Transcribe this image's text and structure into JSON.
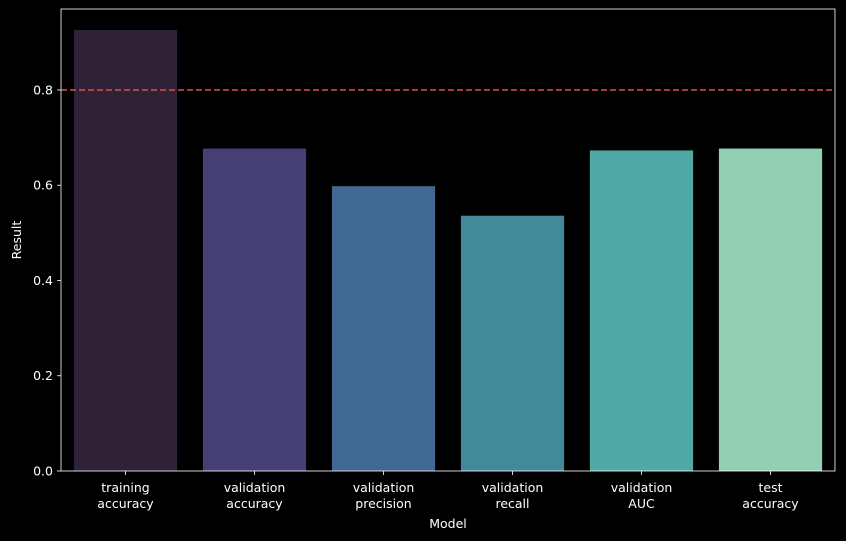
{
  "chart_data": {
    "type": "bar",
    "title": "",
    "xlabel": "Model",
    "ylabel": "Result",
    "categories": [
      [
        "training",
        "accuracy"
      ],
      [
        "validation",
        "accuracy"
      ],
      [
        "validation",
        "precision"
      ],
      [
        "validation",
        "recall"
      ],
      [
        "validation",
        "AUC"
      ],
      [
        "test",
        "accuracy"
      ]
    ],
    "values": [
      0.926,
      0.677,
      0.598,
      0.536,
      0.673,
      0.677
    ],
    "colors": [
      "#2f2236",
      "#453f73",
      "#426894",
      "#428a99",
      "#50a9a4",
      "#92cfb3"
    ],
    "ylim": [
      0,
      0.97
    ],
    "yticks": [
      "0.0",
      "0.2",
      "0.4",
      "0.6",
      "0.8"
    ],
    "reference_line": {
      "y": 0.8,
      "color": "#d9534f",
      "style": "dashed"
    },
    "grid": false,
    "background": "#000000",
    "axis_color": "#ffffff"
  }
}
